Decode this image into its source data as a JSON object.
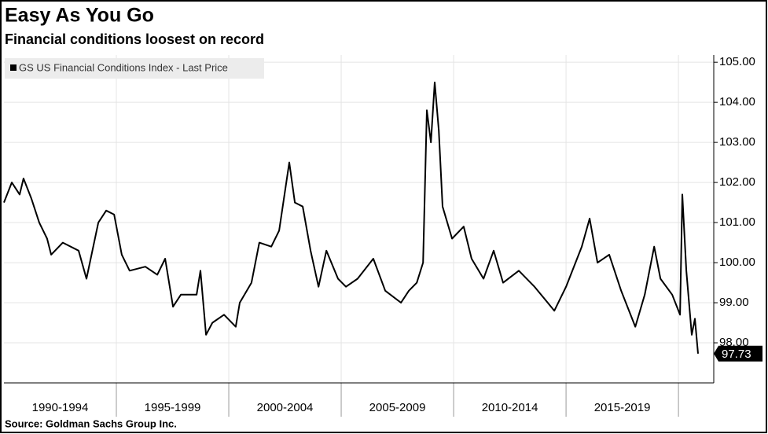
{
  "chart_data": {
    "type": "line",
    "title": "Easy As You Go",
    "subtitle": "Financial conditions loosest on record",
    "source": "Source: Goldman Sachs Group Inc.",
    "x": [
      1990.0,
      1990.35,
      1990.7,
      1990.87,
      1991.22,
      1991.57,
      1991.92,
      1992.1,
      1992.62,
      1993.32,
      1993.67,
      1994.2,
      1994.55,
      1994.9,
      1995.24,
      1995.59,
      1996.29,
      1996.82,
      1997.17,
      1997.52,
      1997.87,
      1998.57,
      1998.74,
      1998.99,
      1999.27,
      1999.79,
      2000.31,
      2000.49,
      2001.01,
      2001.36,
      2001.89,
      2002.24,
      2002.69,
      2002.94,
      2003.29,
      2003.64,
      2003.99,
      2004.34,
      2004.86,
      2005.21,
      2005.73,
      2006.43,
      2006.96,
      2007.66,
      2008.01,
      2008.36,
      2008.64,
      2008.81,
      2008.99,
      2009.16,
      2009.34,
      2009.51,
      2009.93,
      2010.45,
      2010.8,
      2011.33,
      2011.78,
      2012.2,
      2012.9,
      2013.6,
      2014.48,
      2015.0,
      2015.7,
      2016.05,
      2016.4,
      2016.92,
      2017.45,
      2018.08,
      2018.5,
      2018.92,
      2019.2,
      2019.72,
      2020.07,
      2020.17,
      2020.35,
      2020.59,
      2020.73,
      2020.87
    ],
    "series": [
      {
        "name": "GS US Financial Conditions Index - Last Price",
        "color": "#000000",
        "values": [
          101.5,
          102.0,
          101.7,
          102.1,
          101.6,
          101.0,
          100.6,
          100.2,
          100.5,
          100.3,
          99.6,
          101.0,
          101.3,
          101.2,
          100.2,
          99.8,
          99.9,
          99.7,
          100.1,
          98.9,
          99.2,
          99.2,
          99.8,
          98.2,
          98.5,
          98.7,
          98.4,
          99.0,
          99.5,
          100.5,
          100.4,
          100.8,
          102.5,
          101.5,
          101.4,
          100.3,
          99.4,
          100.3,
          99.6,
          99.4,
          99.6,
          100.1,
          99.3,
          99.0,
          99.3,
          99.5,
          100.0,
          103.8,
          103.0,
          104.5,
          103.3,
          101.4,
          100.6,
          100.9,
          100.1,
          99.6,
          100.3,
          99.5,
          99.8,
          99.4,
          98.8,
          99.4,
          100.4,
          101.1,
          100.0,
          100.2,
          99.3,
          98.4,
          99.2,
          100.4,
          99.6,
          99.2,
          98.7,
          101.7,
          99.8,
          98.2,
          98.6,
          97.73
        ]
      }
    ],
    "xlim": [
      1990,
      2021.57
    ],
    "xticks": [
      1995,
      2000,
      2005,
      2010,
      2015,
      2020
    ],
    "xlabels": [
      {
        "value": 1992.5,
        "label": "1990-1994"
      },
      {
        "value": 1997.5,
        "label": "1995-1999"
      },
      {
        "value": 2002.5,
        "label": "2000-2004"
      },
      {
        "value": 2007.5,
        "label": "2005-2009"
      },
      {
        "value": 2012.5,
        "label": "2010-2014"
      },
      {
        "value": 2017.5,
        "label": "2015-2019"
      }
    ],
    "ylim": [
      97,
      105.18
    ],
    "yticks": [
      {
        "value": 98,
        "label": "98.00"
      },
      {
        "value": 99,
        "label": "99.00"
      },
      {
        "value": 100,
        "label": "100.00"
      },
      {
        "value": 101,
        "label": "101.00"
      },
      {
        "value": 102,
        "label": "102.00"
      },
      {
        "value": 103,
        "label": "103.00"
      },
      {
        "value": 104,
        "label": "104.00"
      },
      {
        "value": 105,
        "label": "105.00"
      }
    ],
    "grid": true,
    "legend": "top-left"
  }
}
